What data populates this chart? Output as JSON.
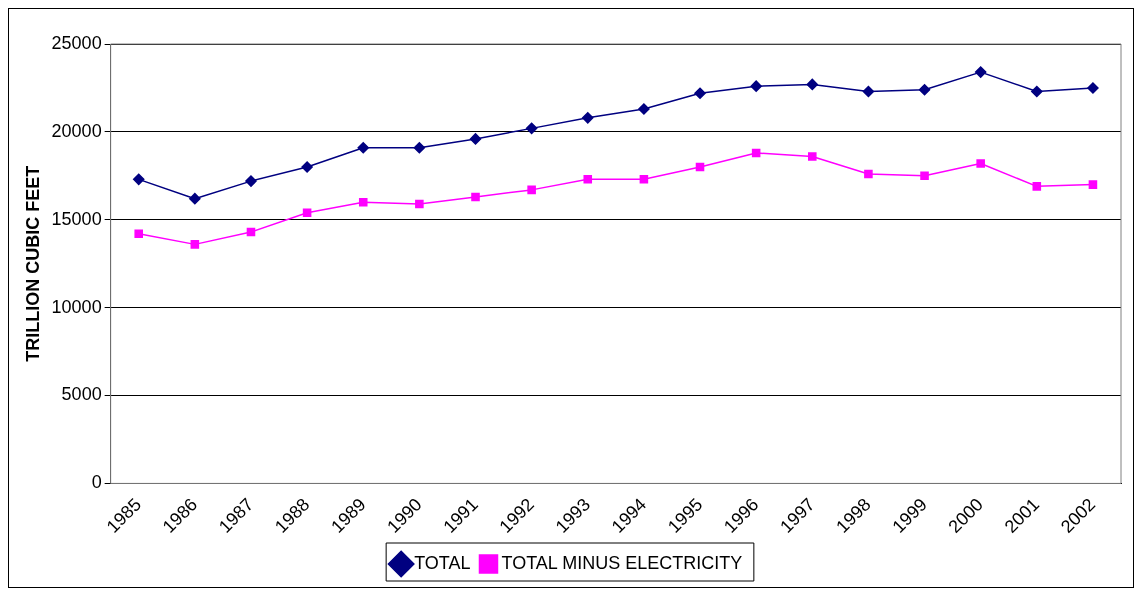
{
  "chart_data": {
    "type": "line",
    "ylabel": "TRILLION CUBIC FEET",
    "categories": [
      "1985",
      "1986",
      "1987",
      "1988",
      "1989",
      "1990",
      "1991",
      "1992",
      "1993",
      "1994",
      "1995",
      "1996",
      "1997",
      "1998",
      "1999",
      "2000",
      "2001",
      "2002"
    ],
    "series": [
      {
        "name": "TOTAL",
        "color": "#000080",
        "marker": "diamond",
        "values": [
          17300,
          16200,
          17200,
          18000,
          19100,
          19100,
          19600,
          20200,
          20800,
          21300,
          22200,
          22600,
          22700,
          22300,
          22400,
          23400,
          22300,
          22500
        ]
      },
      {
        "name": "TOTAL MINUS ELECTRICITY",
        "color": "#ff00ff",
        "marker": "square",
        "values": [
          14200,
          13600,
          14300,
          15400,
          16000,
          15900,
          16300,
          16700,
          17300,
          17300,
          18000,
          18800,
          18600,
          17600,
          17500,
          18200,
          16900,
          17000
        ]
      }
    ],
    "ylim": [
      0,
      25000
    ],
    "yticks": [
      0,
      5000,
      10000,
      15000,
      20000,
      25000
    ],
    "grid": "y",
    "legend": "bottom"
  }
}
